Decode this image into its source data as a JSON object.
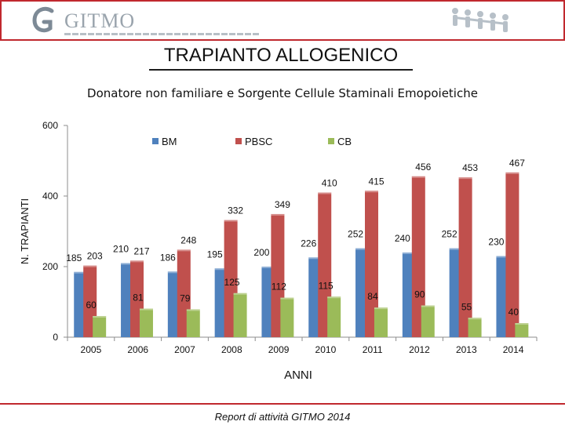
{
  "header": {
    "logo_text": "GITMO",
    "logo_icon": "gitmo-g-logo",
    "people_icon": "people-chain-icon",
    "colors": {
      "frame": "#c0282e",
      "logo": "#9aa4ad"
    }
  },
  "page_title": "TRAPIANTO ALLOGENICO",
  "footer": {
    "text": "Report di attività GITMO 2014"
  },
  "chart_data": {
    "type": "bar",
    "title": "Donatore non familiare e Sorgente Cellule Staminali Emopoietiche",
    "xlabel": "ANNI",
    "ylabel": "N. TRAPIANTI",
    "ylim": [
      0,
      600
    ],
    "yticks": [
      0,
      200,
      400,
      600
    ],
    "grid": false,
    "legend_position": "top",
    "categories": [
      "2005",
      "2006",
      "2007",
      "2008",
      "2009",
      "2010",
      "2011",
      "2012",
      "2013",
      "2014"
    ],
    "series": [
      {
        "name": "BM",
        "color": "#4f81bd",
        "values": [
          185,
          210,
          186,
          195,
          200,
          226,
          252,
          240,
          252,
          230
        ]
      },
      {
        "name": "PBSC",
        "color": "#c0504d",
        "values": [
          203,
          217,
          248,
          332,
          349,
          410,
          415,
          456,
          453,
          467
        ]
      },
      {
        "name": "CB",
        "color": "#9bbb59",
        "values": [
          60,
          81,
          79,
          125,
          112,
          115,
          84,
          90,
          55,
          40
        ]
      }
    ]
  }
}
